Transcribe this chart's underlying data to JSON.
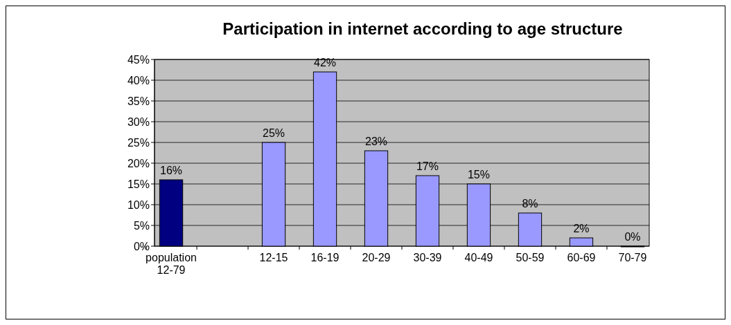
{
  "chart_data": {
    "type": "bar",
    "title": "Participation in internet according to age structure",
    "categories": [
      "population 12-79",
      null,
      "12-15",
      "16-19",
      "20-29",
      "30-39",
      "40-49",
      "50-59",
      "60-69",
      "70-79"
    ],
    "values": [
      16,
      null,
      25,
      42,
      23,
      17,
      15,
      8,
      2,
      0
    ],
    "colors": [
      "#000080",
      null,
      "#9999ff",
      "#9999ff",
      "#9999ff",
      "#9999ff",
      "#9999ff",
      "#9999ff",
      "#9999ff",
      "#9999ff"
    ],
    "value_labels": [
      "16%",
      null,
      "25%",
      "42%",
      "23%",
      "17%",
      "15%",
      "8%",
      "2%",
      "0%"
    ],
    "ylim": [
      0,
      45
    ],
    "yticks": [
      {
        "value": 0,
        "label": "0%"
      },
      {
        "value": 5,
        "label": "5%"
      },
      {
        "value": 10,
        "label": "10%"
      },
      {
        "value": 15,
        "label": "15%"
      },
      {
        "value": 20,
        "label": "20%"
      },
      {
        "value": 25,
        "label": "25%"
      },
      {
        "value": 30,
        "label": "30%"
      },
      {
        "value": 35,
        "label": "35%"
      },
      {
        "value": 40,
        "label": "40%"
      },
      {
        "value": 45,
        "label": "45%"
      }
    ],
    "grid": "y"
  }
}
